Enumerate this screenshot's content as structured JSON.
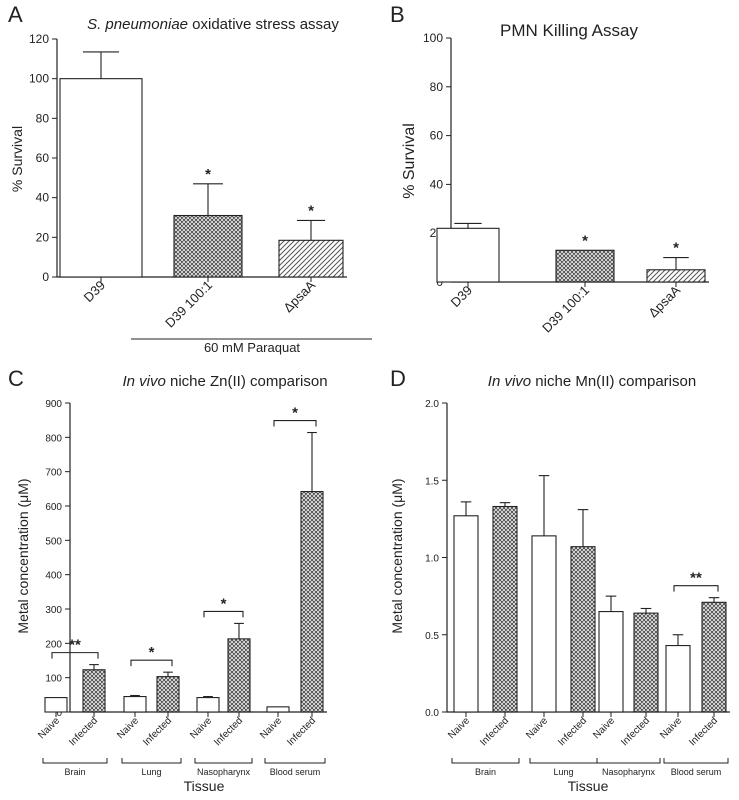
{
  "chart_data": [
    {
      "panel": "A",
      "type": "bar",
      "title_italic": "S. pneumoniae",
      "title_rest": " oxidative stress assay",
      "ylabel": "% Survival",
      "ylim": [
        0,
        120
      ],
      "yticks": [
        0,
        20,
        40,
        60,
        80,
        100,
        120
      ],
      "categories": [
        "D39",
        "D39 100:1",
        "ΔpsaA"
      ],
      "values": [
        100,
        31,
        18.5
      ],
      "errors": [
        13.5,
        16,
        10
      ],
      "fills": [
        "white",
        "cross",
        "diag"
      ],
      "significance": [
        "",
        "*",
        "*"
      ],
      "group_label": "60 mM Paraquat"
    },
    {
      "panel": "B",
      "type": "bar",
      "title": "PMN Killing Assay",
      "ylabel": "% Survival",
      "ylim": [
        0,
        100
      ],
      "yticks": [
        0,
        20,
        40,
        60,
        80,
        100
      ],
      "categories": [
        "D39",
        "D39 100:1",
        "ΔpsaA"
      ],
      "values": [
        22,
        13,
        5
      ],
      "errors": [
        2,
        0,
        5
      ],
      "fills": [
        "white",
        "cross",
        "diag"
      ],
      "significance": [
        "",
        "*",
        "*"
      ]
    },
    {
      "panel": "C",
      "type": "bar",
      "title_italic": "In vivo",
      "title_rest": " niche Zn(II) comparison",
      "ylabel": "Metal concentration (μM)",
      "xlabel": "Tissue",
      "ylim": [
        0,
        900
      ],
      "yticks": [
        0,
        100,
        200,
        300,
        400,
        500,
        600,
        700,
        800,
        900
      ],
      "categories": [
        "Naive",
        "Infected",
        "Naive",
        "Infected",
        "Naive",
        "Infected",
        "Naive",
        "Infected"
      ],
      "groups": [
        "Brain",
        "Lung",
        "Nasopharynx",
        "Blood serum"
      ],
      "values": [
        42,
        123,
        45,
        103,
        42,
        213,
        15,
        642
      ],
      "errors": [
        0,
        15,
        3,
        13,
        3,
        45,
        0,
        172
      ],
      "fills": [
        "white",
        "cross",
        "white",
        "cross",
        "white",
        "cross",
        "white",
        "cross"
      ],
      "significance": [
        "**",
        "*",
        "*",
        "*"
      ]
    },
    {
      "panel": "D",
      "type": "bar",
      "title_italic": "In vivo",
      "title_rest": " niche Mn(II) comparison",
      "ylabel": "Metal concentration (μM)",
      "xlabel": "Tissue",
      "ylim": [
        0,
        2.0
      ],
      "yticks": [
        "0.0",
        "0.5",
        "1.0",
        "1.5",
        "2.0"
      ],
      "categories": [
        "Naive",
        "Infected",
        "Naive",
        "Infected",
        "Naive",
        "Infected",
        "Naive",
        "Infected"
      ],
      "groups": [
        "Brain",
        "Lung",
        "Nasopharynx",
        "Blood serum"
      ],
      "values": [
        1.27,
        1.33,
        1.14,
        1.07,
        0.65,
        0.64,
        0.43,
        0.71
      ],
      "errors": [
        0.09,
        0.025,
        0.39,
        0.24,
        0.1,
        0.03,
        0.07,
        0.03
      ],
      "fills": [
        "white",
        "cross",
        "white",
        "cross",
        "white",
        "cross",
        "white",
        "cross"
      ],
      "significance": [
        "",
        "",
        "",
        "**"
      ]
    }
  ]
}
